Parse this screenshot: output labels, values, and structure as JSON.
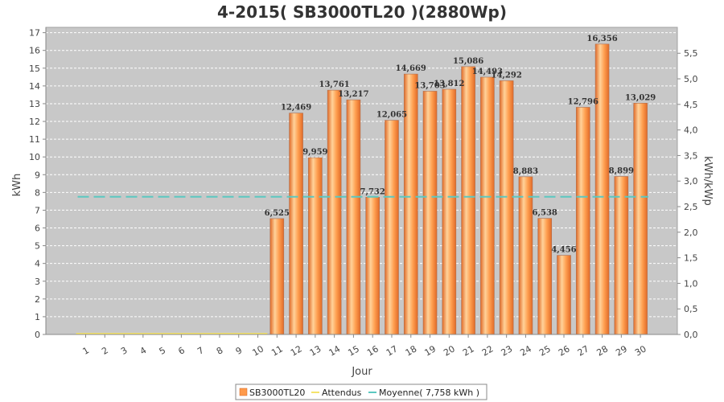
{
  "chart_data": {
    "type": "bar",
    "title": "4-2015( SB3000TL20 )(2880Wp)",
    "xlabel": "Jour",
    "ylabel": "kWh",
    "ylabel_right": "kWh/kWp",
    "ylim": [
      0,
      17.3
    ],
    "y_ticks": [
      "0",
      "1",
      "2",
      "3",
      "4",
      "5",
      "6",
      "7",
      "8",
      "9",
      "10",
      "11",
      "12",
      "13",
      "14",
      "15",
      "16",
      "17"
    ],
    "y2_ticks": [
      "0,0",
      "0,5",
      "1,0",
      "1,5",
      "2,0",
      "2,5",
      "3,0",
      "3,5",
      "4,0",
      "4,5",
      "5,0",
      "5,5"
    ],
    "categories": [
      "1",
      "2",
      "3",
      "4",
      "5",
      "6",
      "7",
      "8",
      "9",
      "10",
      "11",
      "12",
      "13",
      "14",
      "15",
      "16",
      "17",
      "18",
      "19",
      "20",
      "21",
      "22",
      "23",
      "24",
      "25",
      "26",
      "27",
      "28",
      "29",
      "30"
    ],
    "series": [
      {
        "name": "SB3000TL20",
        "values": [
          0,
          0,
          0,
          0,
          0,
          0,
          0,
          0,
          0,
          0,
          6.525,
          12.469,
          9.959,
          13.761,
          13.217,
          7.732,
          12.065,
          14.669,
          13.703,
          13.812,
          15.086,
          14.493,
          14.292,
          8.883,
          6.538,
          4.456,
          12.796,
          16.356,
          8.899,
          13.029
        ],
        "labels": [
          "",
          "",
          "",
          "",
          "",
          "",
          "",
          "",
          "",
          "",
          "6,525",
          "12,469",
          "9,959",
          "13,761",
          "13,217",
          "7,732",
          "12,065",
          "14,669",
          "13,703",
          "13,812",
          "15,086",
          "14,493",
          "14,292",
          "8,883",
          "6,538",
          "4,456",
          "12,796",
          "16,356",
          "8,899",
          "13,029"
        ]
      }
    ],
    "expected": {
      "name": "Attendus",
      "color": "#f5e36b"
    },
    "average": {
      "name": "Moyenne( 7,758 kWh )",
      "value": 7.758,
      "color": "#5bc8c0"
    },
    "grid": true,
    "legend_position": "bottom",
    "colors": {
      "bar_light": "#ffcf8a",
      "bar_mid": "#ff9a4a",
      "bar_dark": "#e0702a",
      "plot_bg": "#c8c8c8"
    }
  }
}
